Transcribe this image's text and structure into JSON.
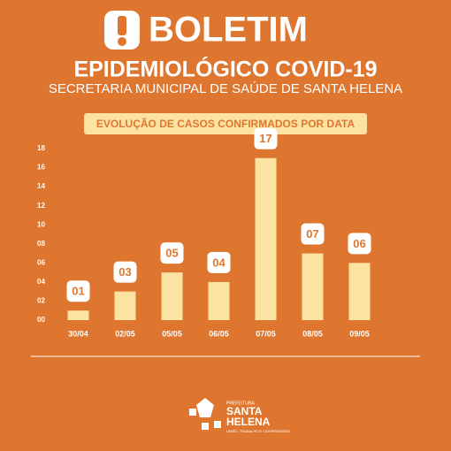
{
  "header": {
    "title": "BOLETIM",
    "subtitle": "EPIDEMIOLÓGICO COVID-19",
    "department": "SECRETARIA MUNICIPAL DE SAÚDE DE SANTA HELENA"
  },
  "chart_data": {
    "type": "bar",
    "title": "EVOLUÇÃO DE CASOS CONFIRMADOS POR DATA",
    "categories": [
      "30/04",
      "02/05",
      "05/05",
      "06/05",
      "07/05",
      "08/05",
      "09/05"
    ],
    "values": [
      1,
      3,
      5,
      4,
      17,
      7,
      6
    ],
    "value_labels": [
      "01",
      "03",
      "05",
      "04",
      "17",
      "07",
      "06"
    ],
    "color": "#fde3a2",
    "ylim": [
      0,
      18
    ],
    "yticks": [
      {
        "value": 0,
        "label": "00"
      },
      {
        "value": 2,
        "label": "02"
      },
      {
        "value": 4,
        "label": "04"
      },
      {
        "value": 6,
        "label": "06"
      },
      {
        "value": 8,
        "label": "08"
      },
      10,
      12,
      14,
      16,
      18
    ]
  },
  "footer": {
    "line1": "PREFEITURA",
    "line2": "SANTA",
    "line3": "HELENA",
    "motto": "UNIÃO, TRABALHO E COMPROMISSO"
  }
}
